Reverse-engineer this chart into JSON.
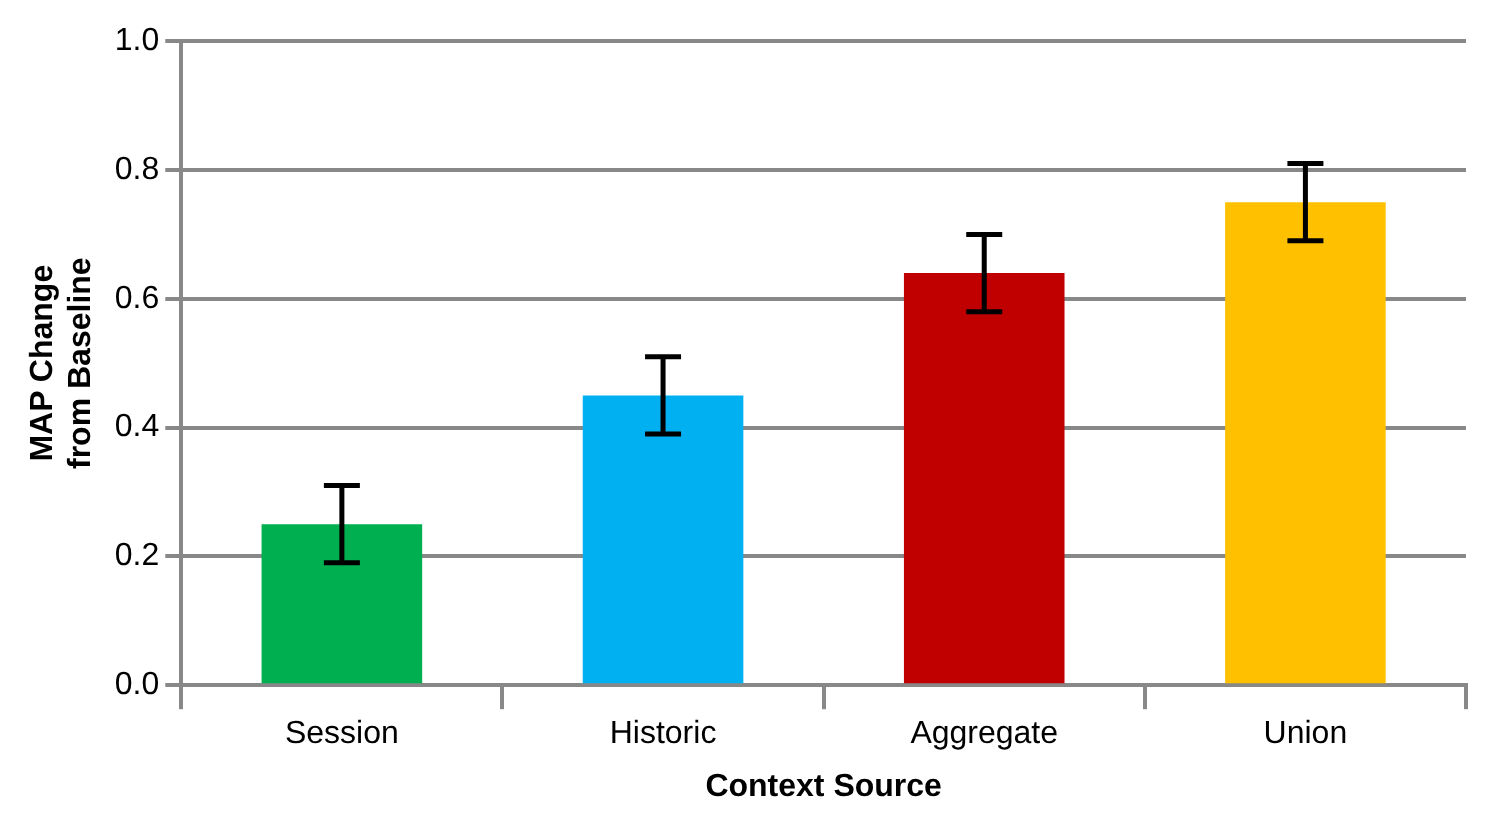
{
  "chart_data": {
    "type": "bar",
    "xlabel": "Context Source",
    "ylabel": "MAP Change from Baseline",
    "categories": [
      "Session",
      "Historic",
      "Aggregate",
      "Union"
    ],
    "values": [
      0.25,
      0.45,
      0.64,
      0.75
    ],
    "colors": [
      "#00b050",
      "#00b0f0",
      "#c00000",
      "#ffc000"
    ],
    "errors": [
      0.06,
      0.06,
      0.06,
      0.06
    ],
    "ylim": [
      0,
      1
    ],
    "yticks": [
      {
        "value": 0,
        "label": "0.0"
      },
      {
        "value": 0.2,
        "label": "0.2"
      },
      {
        "value": 0.4,
        "label": "0.4"
      },
      {
        "value": 0.6,
        "label": "0.6"
      },
      {
        "value": 0.8,
        "label": "0.8"
      },
      {
        "value": 1,
        "label": "1.0"
      }
    ],
    "grid": "y",
    "legend": false
  }
}
